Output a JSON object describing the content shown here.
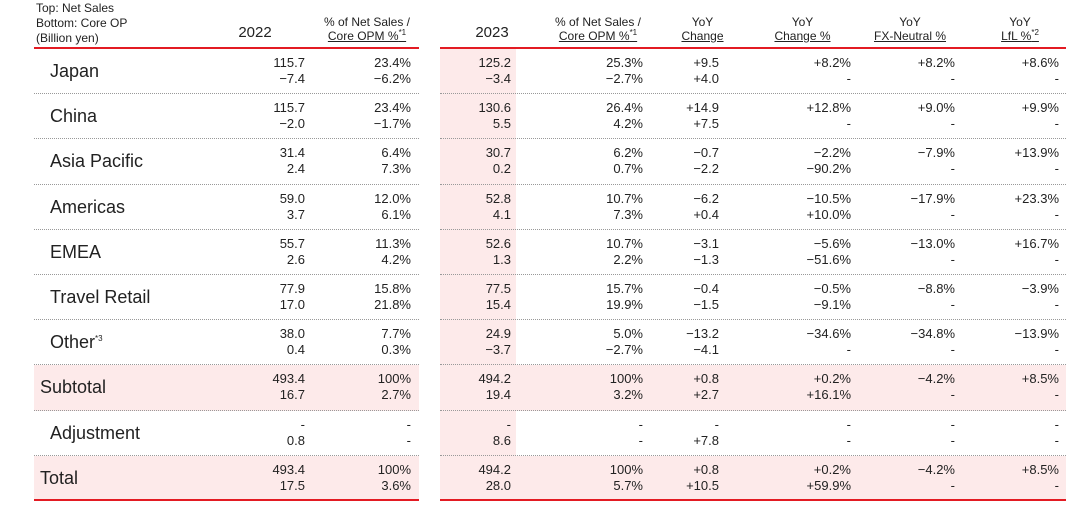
{
  "header_note": [
    "Top: Net Sales",
    "Bottom: Core OP",
    "(Billion yen)"
  ],
  "columns": {
    "y2022": "2022",
    "pct2022_l1": "% of Net Sales /",
    "pct2022_l2": "Core OPM %",
    "pct2022_sup": "*1",
    "y2023": "2023",
    "pct2023_l1": "% of Net Sales /",
    "pct2023_l2": "Core OPM %",
    "pct2023_sup": "*1",
    "yoy_l1": "YoY",
    "yoy_l2": "Change",
    "yoyp_l1": "YoY",
    "yoyp_l2": "Change %",
    "fx_l1": "YoY",
    "fx_l2": "FX-Neutral %",
    "lfl_l1": "YoY",
    "lfl_l2": "LfL %",
    "lfl_sup": "*2"
  },
  "rows": [
    {
      "label": "Japan",
      "sup": "",
      "v2022": [
        "115.7",
        "−7.4"
      ],
      "p2022": [
        "23.4%",
        "−6.2%"
      ],
      "v2023": [
        "125.2",
        "−3.4"
      ],
      "p2023": [
        "25.3%",
        "−2.7%"
      ],
      "yoy": [
        "+9.5",
        "+4.0"
      ],
      "yoyp": [
        "+8.2%",
        "-"
      ],
      "fx": [
        "+8.2%",
        "-"
      ],
      "lfl": [
        "+8.6%",
        "-"
      ]
    },
    {
      "label": "China",
      "sup": "",
      "v2022": [
        "115.7",
        "−2.0"
      ],
      "p2022": [
        "23.4%",
        "−1.7%"
      ],
      "v2023": [
        "130.6",
        "5.5"
      ],
      "p2023": [
        "26.4%",
        "4.2%"
      ],
      "yoy": [
        "+14.9",
        "+7.5"
      ],
      "yoyp": [
        "+12.8%",
        "-"
      ],
      "fx": [
        "+9.0%",
        "-"
      ],
      "lfl": [
        "+9.9%",
        "-"
      ]
    },
    {
      "label": "Asia Pacific",
      "sup": "",
      "v2022": [
        "31.4",
        "2.4"
      ],
      "p2022": [
        "6.4%",
        "7.3%"
      ],
      "v2023": [
        "30.7",
        "0.2"
      ],
      "p2023": [
        "6.2%",
        "0.7%"
      ],
      "yoy": [
        "−0.7",
        "−2.2"
      ],
      "yoyp": [
        "−2.2%",
        "−90.2%"
      ],
      "fx": [
        "−7.9%",
        "-"
      ],
      "lfl": [
        "+13.9%",
        "-"
      ]
    },
    {
      "label": "Americas",
      "sup": "",
      "v2022": [
        "59.0",
        "3.7"
      ],
      "p2022": [
        "12.0%",
        "6.1%"
      ],
      "v2023": [
        "52.8",
        "4.1"
      ],
      "p2023": [
        "10.7%",
        "7.3%"
      ],
      "yoy": [
        "−6.2",
        "+0.4"
      ],
      "yoyp": [
        "−10.5%",
        "+10.0%"
      ],
      "fx": [
        "−17.9%",
        "-"
      ],
      "lfl": [
        "+23.3%",
        "-"
      ]
    },
    {
      "label": "EMEA",
      "sup": "",
      "v2022": [
        "55.7",
        "2.6"
      ],
      "p2022": [
        "11.3%",
        "4.2%"
      ],
      "v2023": [
        "52.6",
        "1.3"
      ],
      "p2023": [
        "10.7%",
        "2.2%"
      ],
      "yoy": [
        "−3.1",
        "−1.3"
      ],
      "yoyp": [
        "−5.6%",
        "−51.6%"
      ],
      "fx": [
        "−13.0%",
        "-"
      ],
      "lfl": [
        "+16.7%",
        "-"
      ]
    },
    {
      "label": "Travel Retail",
      "sup": "",
      "v2022": [
        "77.9",
        "17.0"
      ],
      "p2022": [
        "15.8%",
        "21.8%"
      ],
      "v2023": [
        "77.5",
        "15.4"
      ],
      "p2023": [
        "15.7%",
        "19.9%"
      ],
      "yoy": [
        "−0.4",
        "−1.5"
      ],
      "yoyp": [
        "−0.5%",
        "−9.1%"
      ],
      "fx": [
        "−8.8%",
        "-"
      ],
      "lfl": [
        "−3.9%",
        "-"
      ]
    },
    {
      "label": "Other",
      "sup": "*3",
      "v2022": [
        "38.0",
        "0.4"
      ],
      "p2022": [
        "7.7%",
        "0.3%"
      ],
      "v2023": [
        "24.9",
        "−3.7"
      ],
      "p2023": [
        "5.0%",
        "−2.7%"
      ],
      "yoy": [
        "−13.2",
        "−4.1"
      ],
      "yoyp": [
        "−34.6%",
        "-"
      ],
      "fx": [
        "−34.8%",
        "-"
      ],
      "lfl": [
        "−13.9%",
        "-"
      ]
    },
    {
      "label": "Subtotal",
      "sup": "",
      "v2022": [
        "493.4",
        "16.7"
      ],
      "p2022": [
        "100%",
        "2.7%"
      ],
      "v2023": [
        "494.2",
        "19.4"
      ],
      "p2023": [
        "100%",
        "3.2%"
      ],
      "yoy": [
        "+0.8",
        "+2.7"
      ],
      "yoyp": [
        "+0.2%",
        "+16.1%"
      ],
      "fx": [
        "−4.2%",
        "-"
      ],
      "lfl": [
        "+8.5%",
        "-"
      ]
    },
    {
      "label": "Adjustment",
      "sup": "",
      "v2022": [
        "-",
        "0.8"
      ],
      "p2022": [
        "-",
        "-"
      ],
      "v2023": [
        "-",
        "8.6"
      ],
      "p2023": [
        "-",
        "-"
      ],
      "yoy": [
        "-",
        "+7.8"
      ],
      "yoyp": [
        "-",
        "-"
      ],
      "fx": [
        "-",
        "-"
      ],
      "lfl": [
        "-",
        "-"
      ]
    },
    {
      "label": "Total",
      "sup": "",
      "v2022": [
        "493.4",
        "17.5"
      ],
      "p2022": [
        "100%",
        "3.6%"
      ],
      "v2023": [
        "494.2",
        "28.0"
      ],
      "p2023": [
        "100%",
        "5.7%"
      ],
      "yoy": [
        "+0.8",
        "+10.5"
      ],
      "yoyp": [
        "+0.2%",
        "+59.9%"
      ],
      "fx": [
        "−4.2%",
        "-"
      ],
      "lfl": [
        "+8.5%",
        "-"
      ]
    }
  ],
  "colors": {
    "accent": "#e31b23",
    "shade": "#fdeaea"
  }
}
